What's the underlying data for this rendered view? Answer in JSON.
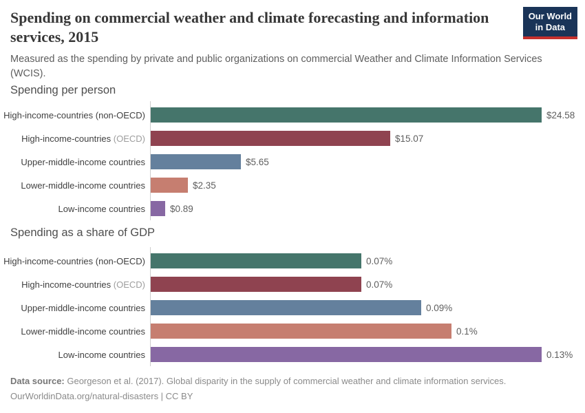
{
  "header": {
    "title": "Spending on commercial weather and climate forecasting and information services, 2015",
    "subtitle": "Measured as the spending by private and public organizations on commercial Weather and Climate Information Services (WCIS).",
    "logo": {
      "line1": "Our World",
      "line2": "in Data",
      "bg_color": "#1A3458",
      "accent_color": "#C5302D"
    }
  },
  "chart_data": [
    {
      "type": "bar",
      "orientation": "horizontal",
      "title": "Spending per person",
      "unit": "US$ per person",
      "xlim": [
        0,
        24.58
      ],
      "grid": false,
      "categories": [
        "High-income-countries (non-OECD)",
        "High-income-countries (OECD)",
        "Upper-middle-income countries",
        "Lower-middle-income countries",
        "Low-income countries"
      ],
      "values": [
        24.58,
        15.07,
        5.65,
        2.35,
        0.89
      ],
      "value_labels": [
        "$24.58",
        "$15.07",
        "$5.65",
        "$2.35",
        "$0.89"
      ],
      "rows": [
        {
          "label": "High-income-countries (non-OECD)",
          "suffix": "",
          "value": 24.58,
          "display": "$24.58",
          "color": "#45756B"
        },
        {
          "label": "High-income-countries",
          "suffix": "(OECD)",
          "value": 15.07,
          "display": "$15.07",
          "color": "#8F4350"
        },
        {
          "label": "Upper-middle-income countries",
          "suffix": "",
          "value": 5.65,
          "display": "$5.65",
          "color": "#64809D"
        },
        {
          "label": "Lower-middle-income countries",
          "suffix": "",
          "value": 2.35,
          "display": "$2.35",
          "color": "#C67E70"
        },
        {
          "label": "Low-income countries",
          "suffix": "",
          "value": 0.89,
          "display": "$0.89",
          "color": "#8768A3"
        }
      ]
    },
    {
      "type": "bar",
      "orientation": "horizontal",
      "title": "Spending as a share of GDP",
      "unit": "% of GDP",
      "xlim": [
        0,
        0.13
      ],
      "grid": false,
      "categories": [
        "High-income-countries (non-OECD)",
        "High-income-countries (OECD)",
        "Upper-middle-income countries",
        "Lower-middle-income countries",
        "Low-income countries"
      ],
      "values": [
        0.07,
        0.07,
        0.09,
        0.1,
        0.13
      ],
      "value_labels": [
        "0.07%",
        "0.07%",
        "0.09%",
        "0.1%",
        "0.13%"
      ],
      "rows": [
        {
          "label": "High-income-countries (non-OECD)",
          "suffix": "",
          "value": 0.07,
          "display": "0.07%",
          "color": "#45756B"
        },
        {
          "label": "High-income-countries",
          "suffix": "(OECD)",
          "value": 0.07,
          "display": "0.07%",
          "color": "#8F4350"
        },
        {
          "label": "Upper-middle-income countries",
          "suffix": "",
          "value": 0.09,
          "display": "0.09%",
          "color": "#64809D"
        },
        {
          "label": "Lower-middle-income countries",
          "suffix": "",
          "value": 0.1,
          "display": "0.1%",
          "color": "#C67E70"
        },
        {
          "label": "Low-income countries",
          "suffix": "",
          "value": 0.13,
          "display": "0.13%",
          "color": "#8768A3"
        }
      ]
    }
  ],
  "footer": {
    "source_label": "Data source:",
    "source_text": " Georgeson et al. (2017). Global disparity in the supply of commercial weather and climate information services.",
    "citation_line": "OurWorldinData.org/natural-disasters | CC BY"
  }
}
